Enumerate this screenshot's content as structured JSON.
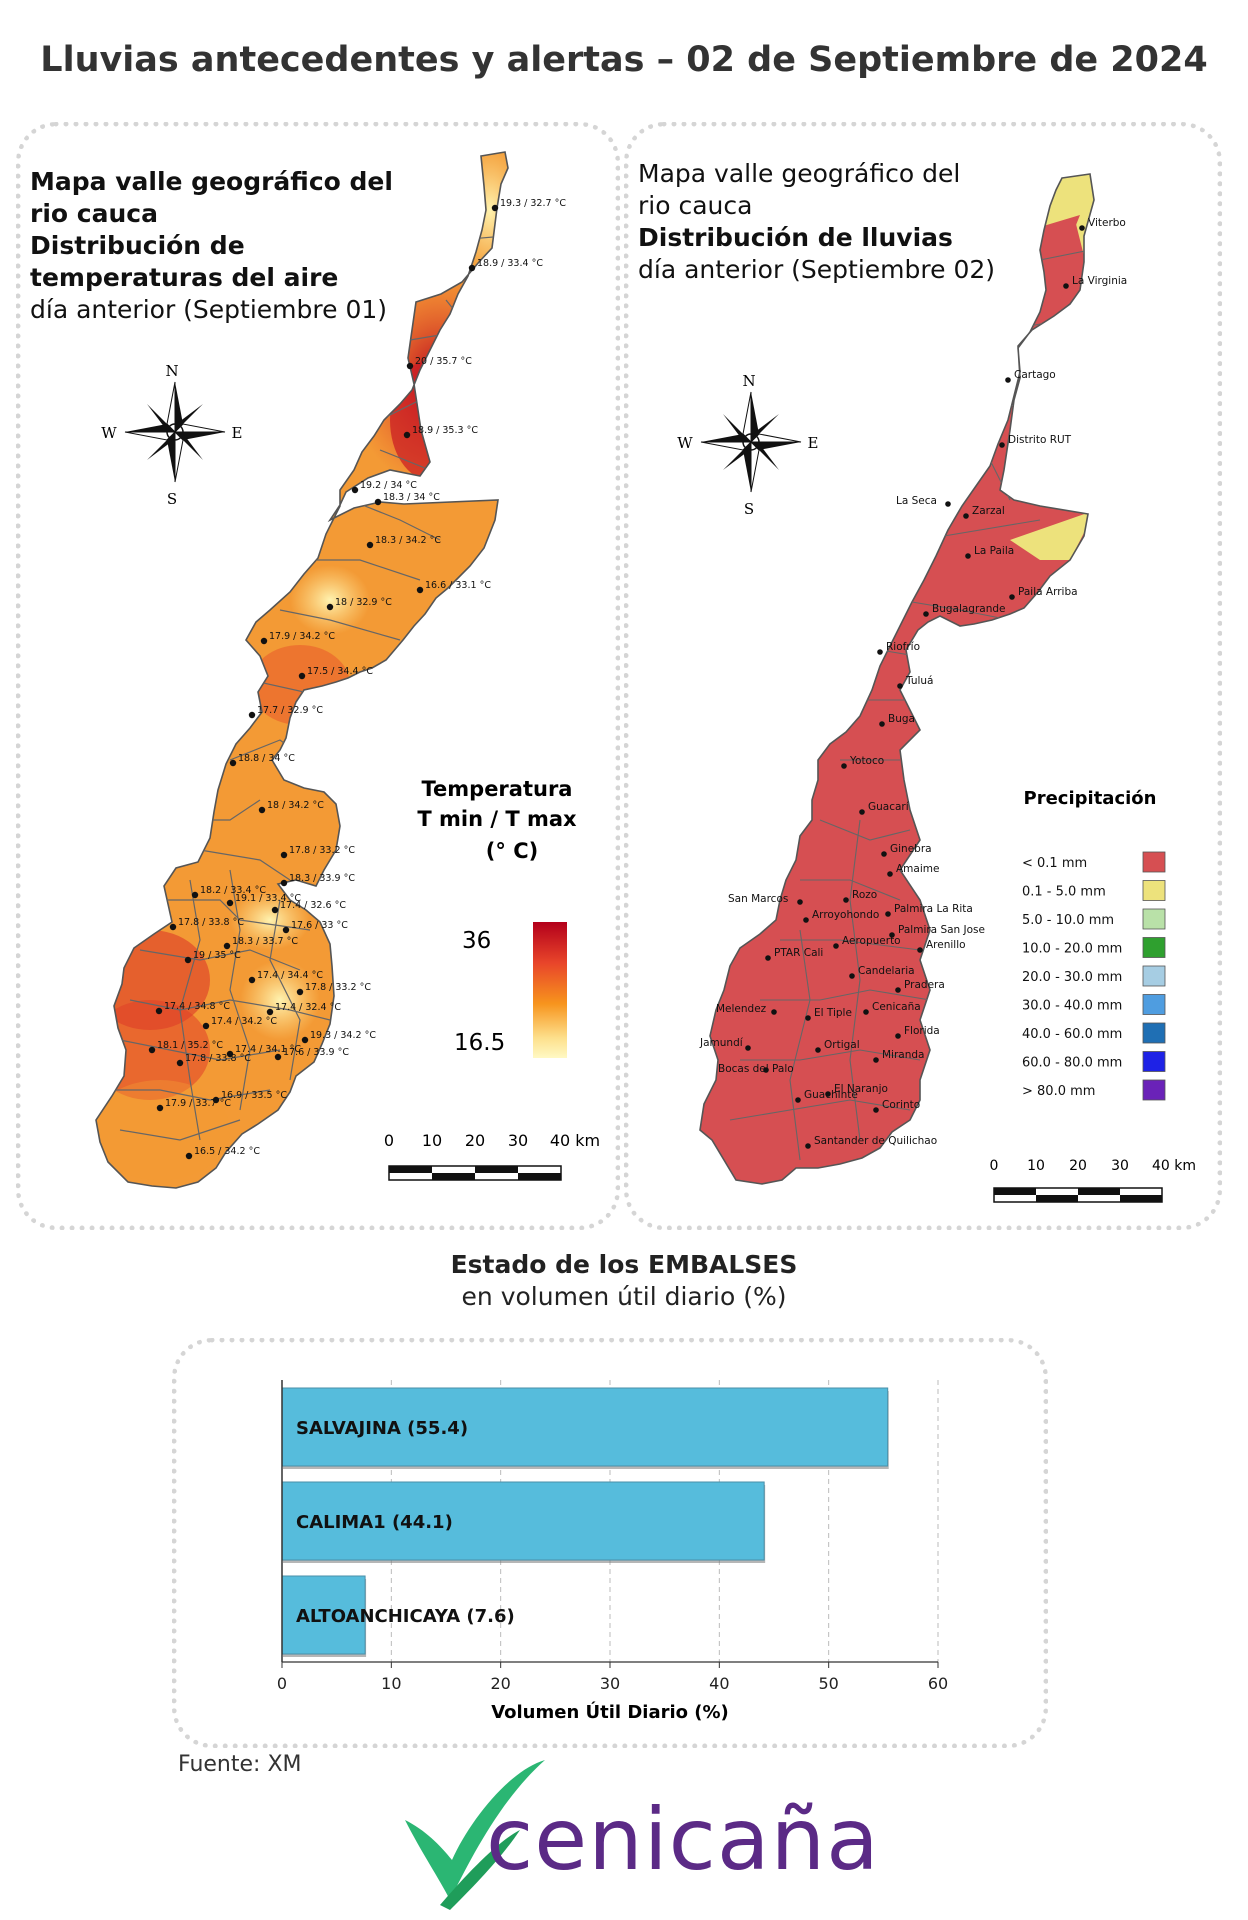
{
  "header": {
    "title": "Lluvias antecedentes y alertas – 02 de Septiembre de 2024"
  },
  "left_map": {
    "title_bold": [
      "Mapa valle geográfico del",
      "rio cauca",
      "Distribución de",
      "temperaturas del aire"
    ],
    "title_normal": "día anterior (Septiembre 01)",
    "compass": {
      "n": "N",
      "s": "S",
      "e": "E",
      "w": "W"
    },
    "legend": {
      "title": [
        "Temperatura",
        "T min / T max",
        "(° C)"
      ],
      "max": "36",
      "min": "16.5",
      "colors": [
        "#b3001b",
        "#e8452a",
        "#f7941d",
        "#fddf8b",
        "#fff9c4"
      ]
    },
    "scale": [
      "0",
      "10",
      "20",
      "30",
      "40 km"
    ],
    "stations": [
      {
        "label": "19.3 / 32.7 °C"
      },
      {
        "label": "18.9 / 33.4 °C"
      },
      {
        "label": "20 / 35.7 °C"
      },
      {
        "label": "18.9 / 35.3 °C"
      },
      {
        "label": "19.2 / 34 °C"
      },
      {
        "label": "18.3 / 34 °C"
      },
      {
        "label": "18.3 / 34.2 °C"
      },
      {
        "label": "16.6 / 33.1 °C"
      },
      {
        "label": "18 / 32.9 °C"
      },
      {
        "label": "17.9 / 34.2 °C"
      },
      {
        "label": "17.5 / 34.4 °C"
      },
      {
        "label": "17.7 / 32.9 °C"
      },
      {
        "label": "18.8 / 34 °C"
      },
      {
        "label": "18 / 34.2 °C"
      },
      {
        "label": "17.8 / 33.2 °C"
      },
      {
        "label": "18.2 / 33.4 °C"
      },
      {
        "label": "18.3 / 33.9 °C"
      },
      {
        "label": "19.1 / 33.4 °C"
      },
      {
        "label": "17.4 / 32.6 °C"
      },
      {
        "label": "17.8 / 33.8 °C"
      },
      {
        "label": "17.6 / 33 °C"
      },
      {
        "label": "19 / 35 °C"
      },
      {
        "label": "18.3 / 33.7 °C"
      },
      {
        "label": "17.4 / 34.4 °C"
      },
      {
        "label": "17.8 / 33.2 °C"
      },
      {
        "label": "17.4 / 34.8 °C"
      },
      {
        "label": "17.4 / 32.4 °C"
      },
      {
        "label": "17.4 / 34.2 °C"
      },
      {
        "label": "19.3 / 34.2 °C"
      },
      {
        "label": "18.1 / 35.2 °C"
      },
      {
        "label": "17.4 / 34.1 °C"
      },
      {
        "label": "17.6 / 33.9 °C"
      },
      {
        "label": "17.8 / 33.8 °C"
      },
      {
        "label": "16.9 / 33.5 °C"
      },
      {
        "label": "17.9 / 33.7 °C"
      },
      {
        "label": "16.5 / 34.2 °C"
      }
    ]
  },
  "right_map": {
    "title_normal_top": [
      "Mapa valle geográfico del",
      "rio cauca"
    ],
    "title_bold": "Distribución de lluvias",
    "title_normal": "día anterior (Septiembre 02)",
    "compass": {
      "n": "N",
      "s": "S",
      "e": "E",
      "w": "W"
    },
    "legend": {
      "title": "Precipitación",
      "items": [
        {
          "label": "< 0.1 mm",
          "color": "#d64f52"
        },
        {
          "label": "0.1 - 5.0 mm",
          "color": "#ede27c"
        },
        {
          "label": "5.0 - 10.0 mm",
          "color": "#b9e1a8"
        },
        {
          "label": "10.0 - 20.0 mm",
          "color": "#2fa02f"
        },
        {
          "label": "20.0 - 30.0 mm",
          "color": "#a6cde3"
        },
        {
          "label": "30.0 - 40.0 mm",
          "color": "#4f9de0"
        },
        {
          "label": "40.0 - 60.0 mm",
          "color": "#1f6fb4"
        },
        {
          "label": "60.0 - 80.0 mm",
          "color": "#1e22e6"
        },
        {
          "label": "> 80.0 mm",
          "color": "#6a22b8"
        }
      ]
    },
    "scale": [
      "0",
      "10",
      "20",
      "30",
      "40 km"
    ],
    "stations": [
      {
        "label": "Viterbo"
      },
      {
        "label": "La Virginia"
      },
      {
        "label": "Cartago"
      },
      {
        "label": "Distrito RUT"
      },
      {
        "label": "La Seca"
      },
      {
        "label": "Zarzal"
      },
      {
        "label": "La Paila"
      },
      {
        "label": "Paila Arriba"
      },
      {
        "label": "Bugalagrande"
      },
      {
        "label": "Riofrío"
      },
      {
        "label": "Tuluá"
      },
      {
        "label": "Buga"
      },
      {
        "label": "Yotoco"
      },
      {
        "label": "Guacarí"
      },
      {
        "label": "Ginebra"
      },
      {
        "label": "Amaime"
      },
      {
        "label": "San Marcos"
      },
      {
        "label": "Rozo"
      },
      {
        "label": "Palmira La Rita"
      },
      {
        "label": "Arroyohondo"
      },
      {
        "label": "Palmira San Jose"
      },
      {
        "label": "Aeropuerto"
      },
      {
        "label": "Arenillo"
      },
      {
        "label": "PTAR Cali"
      },
      {
        "label": "Candelaria"
      },
      {
        "label": "Pradera"
      },
      {
        "label": "Melendez"
      },
      {
        "label": "Cenicaña"
      },
      {
        "label": "El Tiple"
      },
      {
        "label": "Florida"
      },
      {
        "label": "Jamundí"
      },
      {
        "label": "Ortigal"
      },
      {
        "label": "Bocas del Palo"
      },
      {
        "label": "Miranda"
      },
      {
        "label": "El Naranjo"
      },
      {
        "label": "Guachinte"
      },
      {
        "label": "Corinto"
      },
      {
        "label": "Santander de Quilichao"
      }
    ]
  },
  "reservoirs": {
    "title_bold": "Estado de los EMBALSES",
    "title_normal": "en volumen útil diario (%)",
    "source": "Fuente: XM",
    "logo": "cenicaña"
  },
  "chart_data": {
    "type": "bar",
    "orientation": "horizontal",
    "categories": [
      "SALVAJINA",
      "CALIMA1",
      "ALTOANCHICAYA"
    ],
    "bar_labels": [
      "SALVAJINA (55.4)",
      "CALIMA1 (44.1)",
      "ALTOANCHICAYA (7.6)"
    ],
    "values": [
      55.4,
      44.1,
      7.6
    ],
    "xlabel": "Volumen Útil Diario (%)",
    "xlim": [
      0,
      60
    ],
    "xticks": [
      "0",
      "10",
      "20",
      "30",
      "40",
      "50",
      "60"
    ],
    "grid": true,
    "bar_color": "#56bcdc"
  }
}
